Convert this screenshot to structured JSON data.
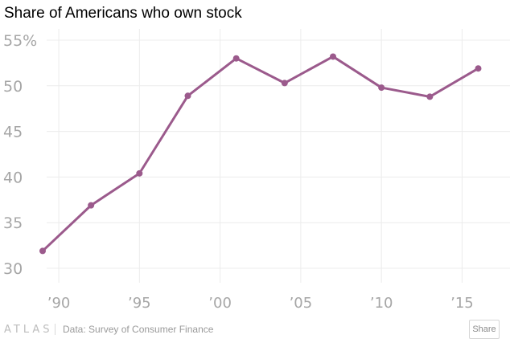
{
  "chart_data": {
    "type": "line",
    "title": "Share of Americans who own stock",
    "xlabel": "",
    "ylabel": "",
    "x": [
      1989,
      1992,
      1995,
      1998,
      2001,
      2004,
      2007,
      2010,
      2013,
      2016
    ],
    "series": [
      {
        "values": [
          31.9,
          36.9,
          40.4,
          48.9,
          53.0,
          50.3,
          53.2,
          49.8,
          48.8,
          51.9
        ],
        "color": "#9b5a8c"
      }
    ],
    "xlim": [
      1988,
      2018
    ],
    "ylim": [
      28,
      56
    ],
    "y_ticks": [
      30,
      35,
      40,
      45,
      50,
      55
    ],
    "y_tick_labels": [
      "30",
      "35",
      "40",
      "45",
      "50",
      "55%"
    ],
    "x_ticks": [
      1990,
      1995,
      2000,
      2005,
      2010,
      2015
    ],
    "x_tick_labels": [
      "’90",
      "’95",
      "’00",
      "’05",
      "’10",
      "’15"
    ],
    "grid": true,
    "legend": "none"
  },
  "footer": {
    "logo": "ATLAS",
    "source": "Data: Survey of Consumer Finance",
    "share_label": "Share"
  }
}
